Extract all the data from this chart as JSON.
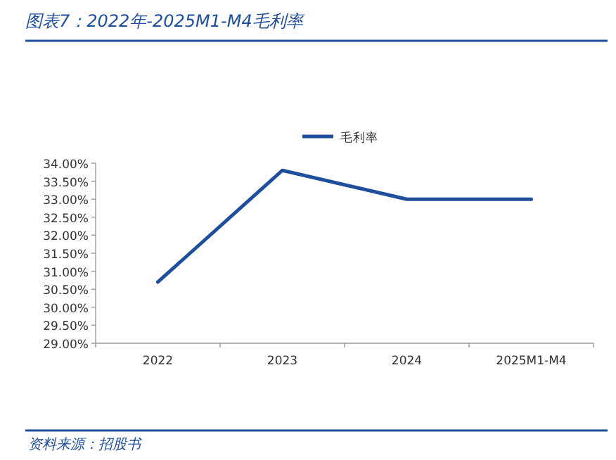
{
  "chart_data": {
    "type": "line",
    "title": "图表7：2022年-2025M1-M4毛利率",
    "categories": [
      "2022",
      "2023",
      "2024",
      "2025M1-M4"
    ],
    "series": [
      {
        "name": "毛利率",
        "color": "#1f4e9c",
        "values": [
          30.7,
          33.8,
          33.0,
          33.0
        ]
      }
    ],
    "ylim": [
      29,
      34
    ],
    "yticks": [
      {
        "value": 29,
        "label": "29.00%"
      },
      {
        "value": 29.5,
        "label": "29.50%"
      },
      {
        "value": 30,
        "label": "30.00%"
      },
      {
        "value": 30.5,
        "label": "30.50%"
      },
      {
        "value": 31,
        "label": "31.00%"
      },
      {
        "value": 31.5,
        "label": "31.50%"
      },
      {
        "value": 32,
        "label": "32.00%"
      },
      {
        "value": 32.5,
        "label": "32.50%"
      },
      {
        "value": 33,
        "label": "33.00%"
      },
      {
        "value": 33.5,
        "label": "33.50%"
      },
      {
        "value": 34,
        "label": "34.00%"
      }
    ],
    "legend": "top",
    "grid": false,
    "marker": "none",
    "line_style": "solid",
    "annotations": [
      "资料来源：招股书"
    ]
  }
}
